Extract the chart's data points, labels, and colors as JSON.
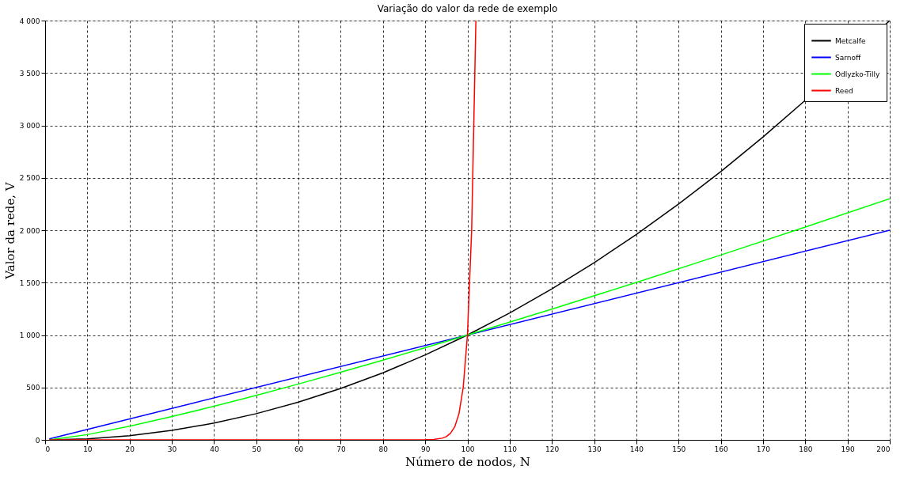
{
  "chart_data": {
    "type": "line",
    "title": "Variação do valor da rede de exemplo",
    "xlabel": "Número de nodos, N",
    "ylabel": "Valor da rede, V",
    "xlim": [
      0,
      200
    ],
    "xticks": [
      0,
      10,
      20,
      30,
      40,
      50,
      60,
      70,
      80,
      90,
      100,
      110,
      120,
      130,
      140,
      150,
      160,
      170,
      180,
      190,
      200
    ],
    "ylim": [
      0,
      4000
    ],
    "yticks": [
      0,
      500,
      {
        "value": 1000,
        "label": "1 000"
      },
      {
        "value": 1500,
        "label": "1 500"
      },
      {
        "value": 2000,
        "label": "2 000"
      },
      {
        "value": 2500,
        "label": "2 500"
      },
      {
        "value": 3000,
        "label": "3 000"
      },
      {
        "value": 3500,
        "label": "3 500"
      },
      {
        "value": 4000,
        "label": "4 000"
      }
    ],
    "grid": true,
    "legend": "top right",
    "line_style": "solid",
    "marker": "none",
    "series": [
      {
        "name": "Metcalfe",
        "color": "#000000",
        "x": [
          1,
          10,
          20,
          30,
          40,
          50,
          60,
          70,
          80,
          90,
          100,
          110,
          120,
          130,
          140,
          150,
          160,
          170,
          180,
          200
        ],
        "values": [
          0,
          10,
          40,
          90,
          160,
          250,
          360,
          490,
          640,
          810,
          1000,
          1210,
          1440,
          1690,
          1960,
          2250,
          2560,
          2890,
          3240,
          4000
        ]
      },
      {
        "name": "Sarnoff",
        "color": "#0000ff",
        "x": [
          1,
          200
        ],
        "values": [
          10,
          2000
        ]
      },
      {
        "name": "Odlyzko-Tilly",
        "color": "#00ff00",
        "x": [
          1,
          10,
          20,
          30,
          40,
          50,
          60,
          70,
          80,
          90,
          100,
          120,
          140,
          160,
          180,
          200
        ],
        "values": [
          0,
          50,
          130,
          222,
          320,
          425,
          533,
          646,
          761,
          879,
          1000,
          1247,
          1502,
          1763,
          2030,
          2301
        ]
      },
      {
        "name": "Reed",
        "color": "#ff0000",
        "x": [
          1,
          90,
          92,
          94,
          95,
          96,
          97,
          98,
          99,
          100,
          101,
          102
        ],
        "values": [
          0,
          1,
          4,
          16,
          31,
          63,
          125,
          250,
          500,
          1000,
          2000,
          4000
        ]
      }
    ]
  }
}
